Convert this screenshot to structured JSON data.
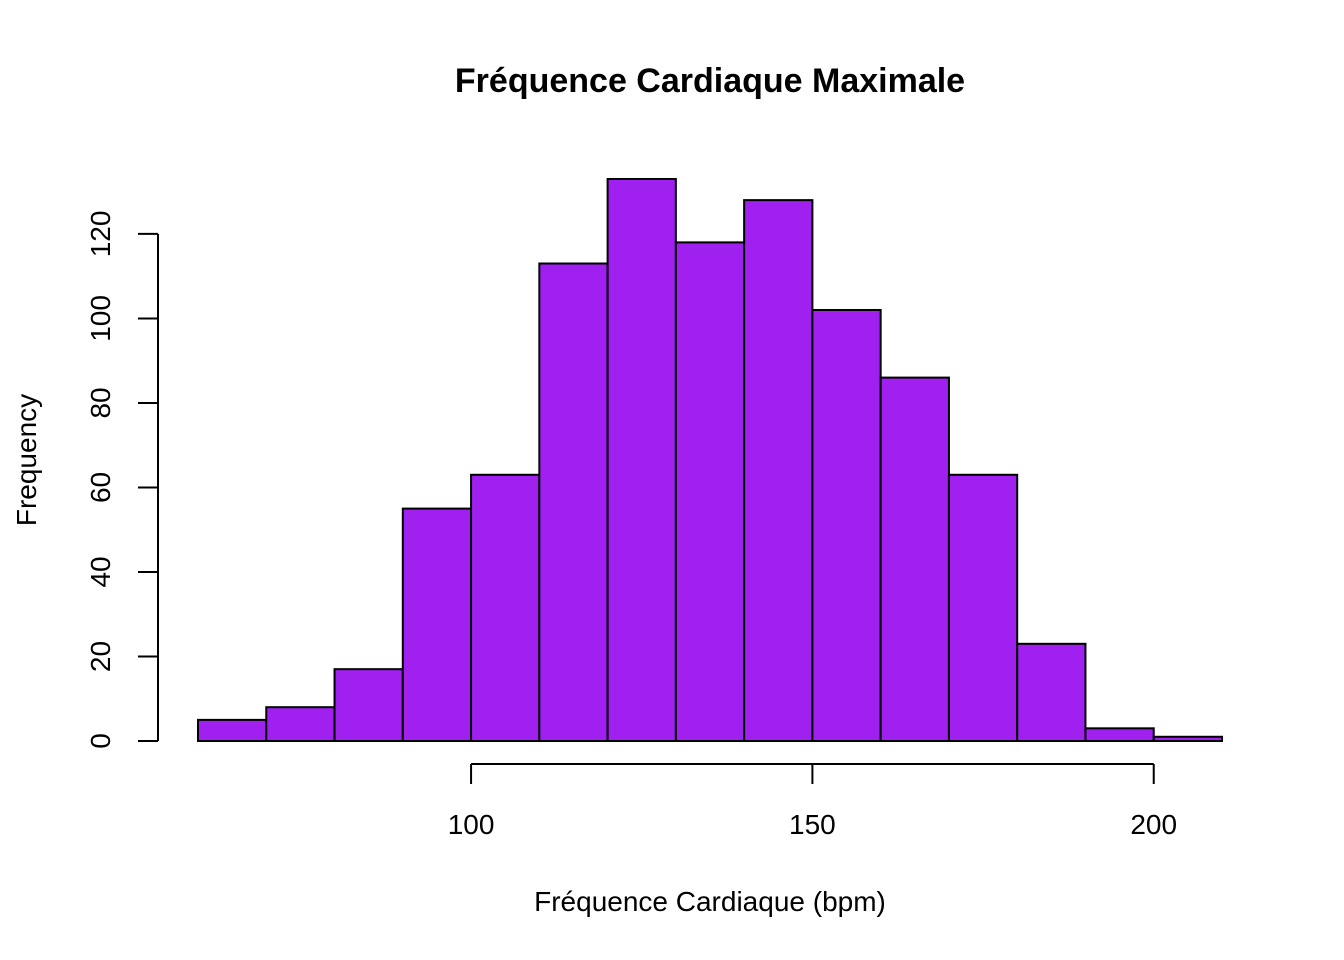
{
  "chart_data": {
    "type": "bar",
    "title": "Fréquence Cardiaque Maximale",
    "xlabel": "Fréquence Cardiaque (bpm)",
    "ylabel": "Frequency",
    "bin_edges": [
      60,
      70,
      80,
      90,
      100,
      110,
      120,
      130,
      140,
      150,
      160,
      170,
      180,
      190,
      200,
      210
    ],
    "values": [
      5,
      8,
      17,
      55,
      63,
      113,
      133,
      118,
      128,
      102,
      86,
      63,
      23,
      3,
      1
    ],
    "xticks": [
      100,
      150,
      200
    ],
    "yticks": [
      0,
      20,
      40,
      60,
      80,
      100,
      120
    ],
    "xlim": [
      60,
      210
    ],
    "ylim": [
      0,
      133
    ],
    "bar_color": "#A020F0",
    "grid": false
  }
}
